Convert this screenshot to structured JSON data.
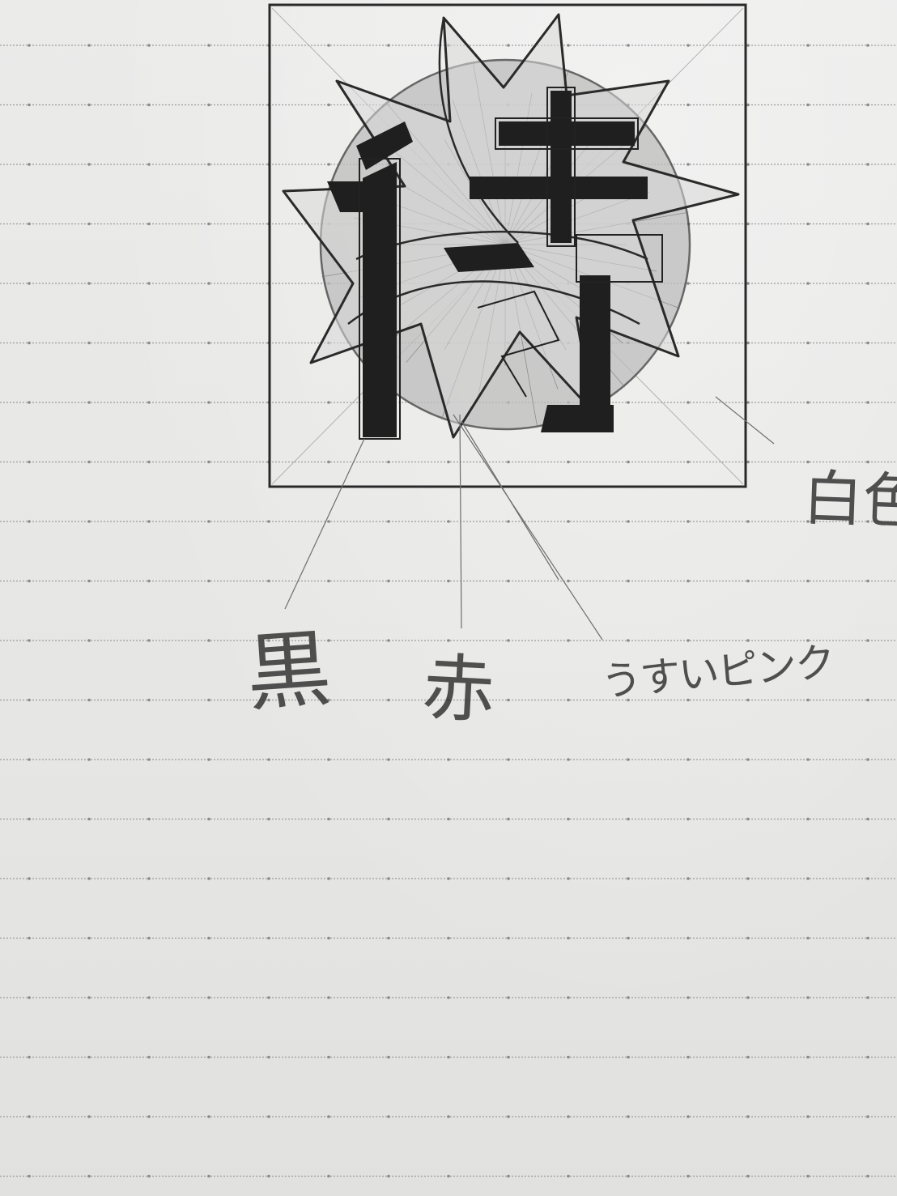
{
  "notebook": {
    "paper_color": "#e9e9e7",
    "rule_color": "#9a9a9a",
    "pencil_color": "#2f2f2f"
  },
  "sketch": {
    "description_icon": "star-circle-emblem-icon"
  },
  "color_labels": {
    "black": "黒",
    "red": "赤",
    "light_pink": "うすいピンク",
    "white": "白色"
  }
}
